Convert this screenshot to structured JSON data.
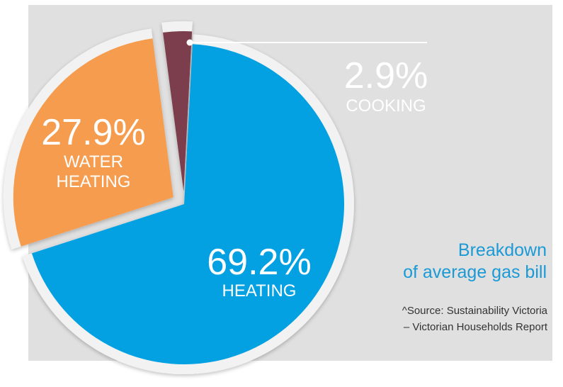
{
  "chart_data": {
    "type": "pie",
    "title": [
      "Breakdown",
      "of average gas bill"
    ],
    "source": [
      "^Source: Sustainability Victoria",
      "– Victorian Households Report"
    ],
    "slices": [
      {
        "label": [
          "HEATING"
        ],
        "value": 69.2,
        "value_label": "69.2%",
        "color": "#03a0e2",
        "exploded": false
      },
      {
        "label": [
          "WATER",
          "HEATING"
        ],
        "value": 27.9,
        "value_label": "27.9%",
        "color": "#f59c4e",
        "exploded": true
      },
      {
        "label": [
          "COOKING"
        ],
        "value": 2.9,
        "value_label": "2.9%",
        "color": "#7c3e4c",
        "exploded": true
      }
    ],
    "colors": {
      "background": "#e0e0e0",
      "rim": "#f2f2f2",
      "label_text": "#ffffff",
      "title": "#1b9ad6",
      "source": "#333333"
    }
  }
}
